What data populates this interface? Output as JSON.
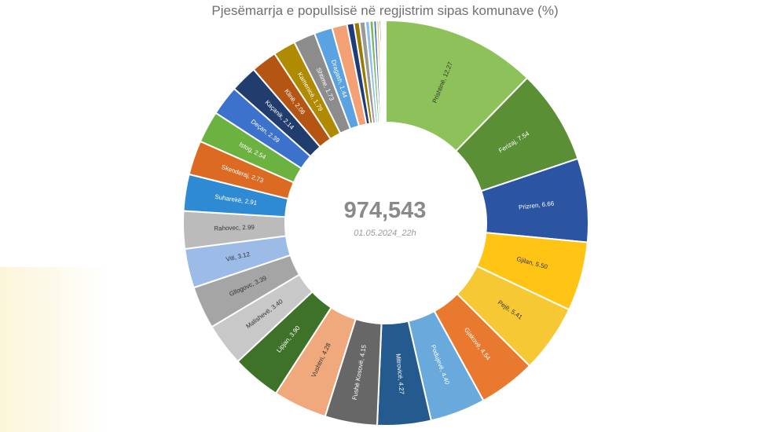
{
  "chart_data": {
    "type": "pie",
    "variant": "donut",
    "title": "Pjesëmarrja e popullsisë në regjistrim sipas komunave (%)",
    "center_total": "974,543",
    "center_subtitle": "01.05.2024_22h",
    "slices": [
      {
        "label": "Prishtinë, 12.27",
        "value": 12.27,
        "color": "#8dc25a"
      },
      {
        "label": "Ferizaj, 7.54",
        "value": 7.54,
        "color": "#5a8f35"
      },
      {
        "label": "Prizren, 6.66",
        "value": 6.66,
        "color": "#2b54a3"
      },
      {
        "label": "Gjilan, 5.50",
        "value": 5.5,
        "color": "#ffc414"
      },
      {
        "label": "Pejë, 5.41",
        "value": 5.41,
        "color": "#f6c934"
      },
      {
        "label": "Gjakovë, 4.54",
        "value": 4.54,
        "color": "#e8792e"
      },
      {
        "label": "Podujevë, 4.40",
        "value": 4.4,
        "color": "#6aa9dc"
      },
      {
        "label": "Mitrovicë, 4.27",
        "value": 4.27,
        "color": "#245a8e"
      },
      {
        "label": "Fushë Kosovë, 4.15",
        "value": 4.15,
        "color": "#676767"
      },
      {
        "label": "Vushtrri, 4.28",
        "value": 4.28,
        "color": "#f0a97c"
      },
      {
        "label": "Lipjan, 3.90",
        "value": 3.9,
        "color": "#3e7228"
      },
      {
        "label": "Malishevë, 3.40",
        "value": 3.4,
        "color": "#c8c8c8"
      },
      {
        "label": "Gllogovc, 3.39",
        "value": 3.39,
        "color": "#a5a5a5"
      },
      {
        "label": "Viti, 3.12",
        "value": 3.12,
        "color": "#9dbbe7"
      },
      {
        "label": "Rahovec, 2.99",
        "value": 2.99,
        "color": "#bbbbbb"
      },
      {
        "label": "Suharekë, 2.91",
        "value": 2.91,
        "color": "#2e8ad3"
      },
      {
        "label": "Skenderaj, 2.73",
        "value": 2.73,
        "color": "#dd6a22"
      },
      {
        "label": "Istog, 2.54",
        "value": 2.54,
        "color": "#6bb241"
      },
      {
        "label": "Deçan, 2.39",
        "value": 2.39,
        "color": "#3c72cc"
      },
      {
        "label": "Kaçanik, 2.14",
        "value": 2.14,
        "color": "#213d6e"
      },
      {
        "label": "Klinë, 2.06",
        "value": 2.06,
        "color": "#b55513"
      },
      {
        "label": "Kamenicë, 1.79",
        "value": 1.79,
        "color": "#b08a00"
      },
      {
        "label": "Shtime, 1.73",
        "value": 1.73,
        "color": "#8c8c8c"
      },
      {
        "label": "Dragash, 1.44",
        "value": 1.44,
        "color": "#5aa2e0"
      },
      {
        "label": "",
        "value": 1.2,
        "color": "#f2a074"
      },
      {
        "label": "",
        "value": 0.55,
        "color": "#1e3d78"
      },
      {
        "label": "",
        "value": 0.45,
        "color": "#9a7a00"
      },
      {
        "label": "",
        "value": 0.45,
        "color": "#9a9a9a"
      },
      {
        "label": "",
        "value": 0.35,
        "color": "#8ec0ea"
      },
      {
        "label": "",
        "value": 0.3,
        "color": "#7fb35a"
      },
      {
        "label": "",
        "value": 0.25,
        "color": "#4a79c2"
      },
      {
        "label": "",
        "value": 0.2,
        "color": "#f0b84a"
      },
      {
        "label": "",
        "value": 0.15,
        "color": "#333333"
      },
      {
        "label": "",
        "value": 0.12,
        "color": "#b0b0b0"
      },
      {
        "label": "",
        "value": 0.1,
        "color": "#6a8fc9"
      },
      {
        "label": "",
        "value": 0.08,
        "color": "#cc7a2a"
      },
      {
        "label": "",
        "value": 0.07,
        "color": "#3a3a3a"
      }
    ]
  }
}
